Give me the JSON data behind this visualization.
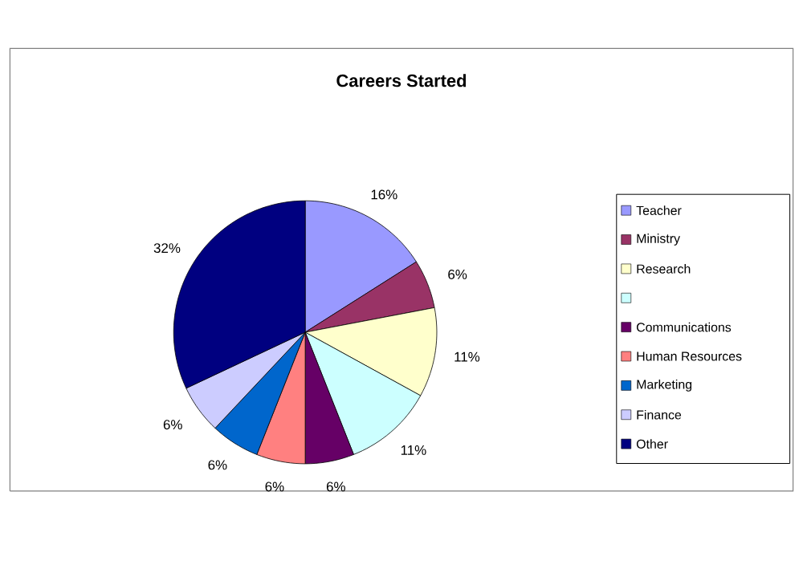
{
  "chart_data": {
    "type": "pie",
    "title": "Careers Started",
    "categories": [
      "Teacher",
      "Ministry",
      "Research",
      null,
      "Communications",
      "Human Resources",
      "Marketing",
      "Finance",
      "Other"
    ],
    "values": [
      16,
      6,
      11,
      11,
      6,
      6,
      6,
      6,
      32
    ],
    "value_labels": [
      "16%",
      "6%",
      "11%",
      "11%",
      "6%",
      "6%",
      "6%",
      "6%",
      "32%"
    ],
    "colors": [
      "#9999ff",
      "#993366",
      "#ffffcc",
      "#ccffff",
      "#660066",
      "#ff8080",
      "#0066cc",
      "#ccccff",
      "#000080"
    ],
    "legend": "right"
  }
}
